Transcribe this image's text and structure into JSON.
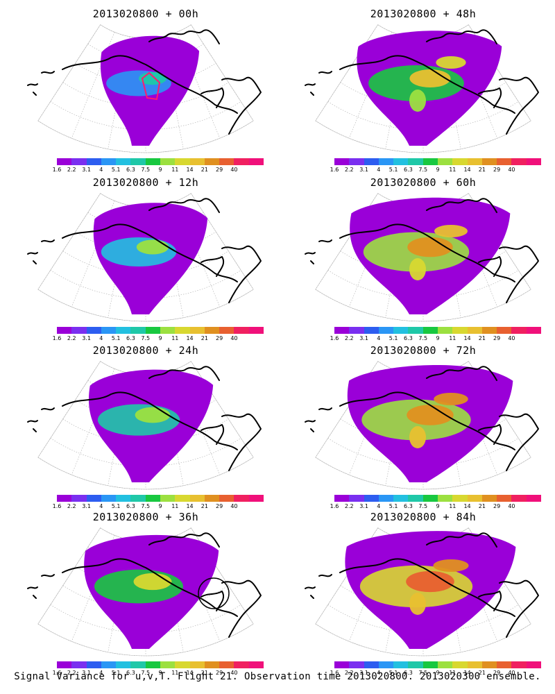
{
  "panels": [
    {
      "title": "2013020800  +  00h",
      "variance_level": 0.1,
      "has_flight_track": true,
      "has_circle": false
    },
    {
      "title": "2013020800  +  48h",
      "variance_level": 0.55,
      "has_flight_track": false,
      "has_circle": false
    },
    {
      "title": "2013020800  +  12h",
      "variance_level": 0.25,
      "has_flight_track": false,
      "has_circle": false
    },
    {
      "title": "2013020800  +  60h",
      "variance_level": 0.7,
      "has_flight_track": false,
      "has_circle": false
    },
    {
      "title": "2013020800  +  24h",
      "variance_level": 0.35,
      "has_flight_track": false,
      "has_circle": false
    },
    {
      "title": "2013020800  +  72h",
      "variance_level": 0.75,
      "has_flight_track": false,
      "has_circle": false
    },
    {
      "title": "2013020800  +  36h",
      "variance_level": 0.45,
      "has_flight_track": false,
      "has_circle": true
    },
    {
      "title": "2013020800  +  84h",
      "variance_level": 0.8,
      "has_flight_track": false,
      "has_circle": false
    }
  ],
  "colorbar": {
    "colors": [
      "#9a00d8",
      "#7a2ff0",
      "#2d5df0",
      "#2a96f5",
      "#22c0e0",
      "#1fc8a8",
      "#18c840",
      "#9ce040",
      "#d8d830",
      "#e8c030",
      "#e09020",
      "#e86030",
      "#f02060",
      "#f0107a"
    ],
    "labels": [
      "1.6",
      "2.2",
      "3.1",
      "4",
      "5.1",
      "6.3",
      "7.5",
      "9",
      "11",
      "14",
      "21",
      "29",
      "40"
    ]
  },
  "caption": "Signal Variance for u,v,T. Flight 21. Observation time 2013020800. 2013020300 ensemble.",
  "icons": [
    "map-projection-grid",
    "coastline",
    "flight-track",
    "target-circle"
  ]
}
